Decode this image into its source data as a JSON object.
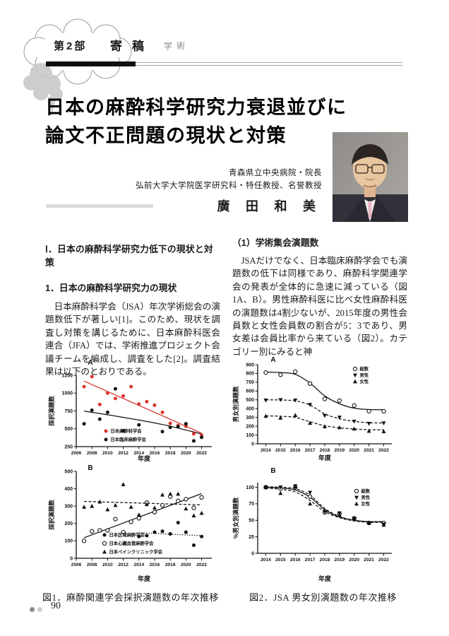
{
  "header": {
    "part_label": "第2部",
    "section_title": "寄稿",
    "section_tag": "学術"
  },
  "title": {
    "line1": "日本の麻酔科学研究力衰退並びに",
    "line2": "論文不正問題の現状と対策"
  },
  "author": {
    "affiliation1": "青森県立中央病院・院長",
    "affiliation2": "弘前大学大学院医学研究科・特任教授、名誉教授",
    "name": "廣 田 和 美"
  },
  "columns": {
    "left": {
      "heading": "Ⅰ．日本の麻酔科学研究力低下の現状と対策",
      "subheading": "1．日本の麻酔科学研究力の現状",
      "body": "　日本麻酔科学会（JSA）年次学術総会の演題数低下が著しい[1]。このため、現状を調査し対策を講じるために、日本麻酔科医会連合（JFA）では、学術推進プロジェクト会議チームを編成し、調査をした[2]。調査結果は以下のとおりである。"
    },
    "right": {
      "heading": "（1）学術集会演題数",
      "body": "　JSAだけでなく、日本臨床麻酔学会でも演題数の低下は同様であり、麻酔科学関連学会の発表が全体的に急速に減っている（図1A、B）。男性麻酔科医に比べ女性麻酔科医の演題数は4割少ないが、2015年度の男性会員数と女性会員数の割合が5：3であり、男女差は会員比率から来ている（図2）。カテゴリー別にみると神"
    }
  },
  "figures": {
    "fig1_caption": "図1．麻酔関連学会採択演題数の年次推移",
    "fig2_caption": "図2．JSA 男女別演題数の年次推移"
  },
  "footer": {
    "page_number": "90"
  },
  "chart_data": [
    {
      "id": "fig1A",
      "type": "scatter",
      "panel": "A",
      "xlabel": "年度",
      "ylabel": "採択演題数",
      "xlim": [
        2006,
        2023.3
      ],
      "ylim": [
        250,
        1250
      ],
      "xticks": [
        2006,
        2008,
        2010,
        2012,
        2014,
        2016,
        2018,
        2020,
        2022
      ],
      "yticks": [
        250,
        500,
        750,
        1000,
        1250
      ],
      "legend_position": "bottom-left",
      "series": [
        {
          "name": "日本麻酔科学会",
          "marker": "circle",
          "color": "#d9352c",
          "points": [
            [
              2007,
              1090
            ],
            [
              2008,
              1230
            ],
            [
              2009,
              840
            ],
            [
              2010,
              1000
            ],
            [
              2011,
              925
            ],
            [
              2012,
              960
            ],
            [
              2013,
              1090
            ],
            [
              2014,
              845
            ],
            [
              2015,
              880
            ],
            [
              2016,
              830
            ],
            [
              2017,
              730
            ],
            [
              2018,
              575
            ],
            [
              2019,
              545
            ],
            [
              2020,
              535
            ],
            [
              2021,
              430
            ],
            [
              2022,
              410
            ]
          ]
        },
        {
          "name": "日本臨床麻酔学会",
          "marker": "circle",
          "color": "#111111",
          "points": [
            [
              2007,
              570
            ],
            [
              2008,
              760
            ],
            [
              2009,
              635
            ],
            [
              2010,
              730
            ],
            [
              2011,
              1060
            ],
            [
              2012,
              470
            ],
            [
              2014,
              555
            ],
            [
              2017,
              460
            ],
            [
              2018,
              520
            ],
            [
              2019,
              530
            ],
            [
              2020,
              570
            ],
            [
              2021,
              330
            ],
            [
              2022,
              380
            ]
          ]
        }
      ],
      "trends": [
        {
          "color": "#d9352c",
          "dash": "solid",
          "points": [
            [
              2007,
              1168
            ],
            [
              2022,
              438
            ]
          ]
        },
        {
          "color": "#111111",
          "dash": "solid",
          "smooth": true,
          "points": [
            [
              2007,
              748
            ],
            [
              2012,
              660
            ],
            [
              2017,
              560
            ],
            [
              2022,
              428
            ]
          ]
        }
      ]
    },
    {
      "id": "fig1B",
      "type": "scatter",
      "panel": "B",
      "xlabel": "年度",
      "ylabel": "採択演題数",
      "xlim": [
        2006,
        2023.3
      ],
      "ylim": [
        0,
        500
      ],
      "xticks": [
        2006,
        2008,
        2010,
        2012,
        2014,
        2016,
        2018,
        2020,
        2022
      ],
      "yticks": [
        0,
        100,
        200,
        300,
        400,
        500
      ],
      "legend_position": "bottom-left",
      "series": [
        {
          "name": "日本区域麻酔学会",
          "marker": "circle",
          "color": "#111111",
          "points": [
            [
              2014,
              125
            ],
            [
              2015,
              130
            ],
            [
              2016,
              150
            ],
            [
              2017,
              155
            ],
            [
              2018,
              140
            ],
            [
              2019,
              205
            ],
            [
              2020,
              150
            ],
            [
              2021,
              75
            ],
            [
              2022,
              125
            ]
          ]
        },
        {
          "name": "日本心臓血管麻酔学会",
          "marker": "circle-open",
          "color": "#111111",
          "points": [
            [
              2007,
              100
            ],
            [
              2008,
              155
            ],
            [
              2009,
              160
            ],
            [
              2010,
              160
            ],
            [
              2011,
              225
            ],
            [
              2012,
              150
            ],
            [
              2013,
              210
            ],
            [
              2014,
              230
            ],
            [
              2015,
              320
            ],
            [
              2016,
              265
            ],
            [
              2017,
              305
            ],
            [
              2018,
              355
            ],
            [
              2019,
              330
            ],
            [
              2020,
              340
            ],
            [
              2021,
              290
            ],
            [
              2022,
              350
            ]
          ]
        },
        {
          "name": "日本ペインクリニック学会",
          "marker": "tri-up",
          "color": "#111111",
          "points": [
            [
              2007,
              295
            ],
            [
              2008,
              300
            ],
            [
              2009,
              325
            ],
            [
              2010,
              280
            ],
            [
              2011,
              305
            ],
            [
              2012,
              425
            ],
            [
              2013,
              295
            ],
            [
              2014,
              250
            ],
            [
              2015,
              310
            ],
            [
              2016,
              290
            ],
            [
              2017,
              365
            ],
            [
              2018,
              370
            ],
            [
              2019,
              370
            ],
            [
              2020,
              285
            ],
            [
              2021,
              245
            ],
            [
              2022,
              260
            ]
          ]
        }
      ],
      "trends": [
        {
          "color": "#111111",
          "dash": "solid",
          "points": [
            [
              2007,
              118
            ],
            [
              2022,
              372
            ]
          ]
        },
        {
          "color": "#111111",
          "dash": "dashed",
          "points": [
            [
              2007,
              327
            ],
            [
              2022,
              307
            ]
          ]
        },
        {
          "color": "#111111",
          "dash": "dotted",
          "points": [
            [
              2014,
              147
            ],
            [
              2022,
              130
            ]
          ]
        }
      ]
    },
    {
      "id": "fig2A",
      "type": "scatter",
      "panel": "A",
      "xlabel": "年度",
      "ylabel": "男女別演題数",
      "xlim": [
        2013.45,
        2022.55
      ],
      "ylim": [
        0,
        900
      ],
      "xticks": [
        2014,
        2015,
        2016,
        2017,
        2018,
        2019,
        2020,
        2021,
        2022
      ],
      "yticks": [
        0,
        100,
        200,
        300,
        400,
        500,
        600,
        700,
        800,
        900
      ],
      "legend_position": "top-right",
      "series": [
        {
          "name": "総数",
          "marker": "circle-open",
          "color": "#111111",
          "points": [
            [
              2014,
              810
            ],
            [
              2015,
              785
            ],
            [
              2016,
              820
            ],
            [
              2017,
              685
            ],
            [
              2018,
              510
            ],
            [
              2019,
              490
            ],
            [
              2020,
              435
            ],
            [
              2021,
              370
            ],
            [
              2022,
              370
            ]
          ]
        },
        {
          "name": "男性",
          "marker": "tri-down",
          "color": "#111111",
          "points": [
            [
              2014,
              495
            ],
            [
              2015,
              500
            ],
            [
              2016,
              495
            ],
            [
              2017,
              445
            ],
            [
              2018,
              320
            ],
            [
              2019,
              300
            ],
            [
              2020,
              255
            ],
            [
              2021,
              230
            ],
            [
              2022,
              235
            ]
          ]
        },
        {
          "name": "女性",
          "marker": "tri-up",
          "color": "#111111",
          "points": [
            [
              2014,
              315
            ],
            [
              2015,
              295
            ],
            [
              2016,
              325
            ],
            [
              2017,
              235
            ],
            [
              2018,
              195
            ],
            [
              2019,
              185
            ],
            [
              2020,
              170
            ],
            [
              2021,
              145
            ],
            [
              2022,
              140
            ]
          ]
        }
      ],
      "trends": [
        {
          "color": "#111111",
          "dash": "solid",
          "smooth": true,
          "points": [
            [
              2014,
              815
            ],
            [
              2015,
              810
            ],
            [
              2016,
              790
            ],
            [
              2017,
              690
            ],
            [
              2018,
              545
            ],
            [
              2019,
              455
            ],
            [
              2020,
              405
            ],
            [
              2021,
              390
            ],
            [
              2022,
              388
            ]
          ]
        },
        {
          "color": "#111111",
          "dash": "dashed",
          "smooth": true,
          "points": [
            [
              2014,
              500
            ],
            [
              2015,
              498
            ],
            [
              2016,
              488
            ],
            [
              2017,
              440
            ],
            [
              2018,
              340
            ],
            [
              2019,
              285
            ],
            [
              2020,
              255
            ],
            [
              2021,
              240
            ],
            [
              2022,
              237
            ]
          ]
        },
        {
          "color": "#111111",
          "dash": "dashed",
          "smooth": true,
          "points": [
            [
              2014,
              317
            ],
            [
              2015,
              313
            ],
            [
              2016,
              300
            ],
            [
              2017,
              250
            ],
            [
              2018,
              205
            ],
            [
              2019,
              182
            ],
            [
              2020,
              168
            ],
            [
              2021,
              160
            ],
            [
              2022,
              158
            ]
          ]
        }
      ]
    },
    {
      "id": "fig2B",
      "type": "scatter",
      "panel": "B",
      "xlabel": "年度",
      "ylabel": "%男女別演題数",
      "xlim": [
        2013.45,
        2022.55
      ],
      "ylim": [
        0,
        107
      ],
      "xticks": [
        2014,
        2015,
        2016,
        2017,
        2018,
        2019,
        2020,
        2021,
        2022
      ],
      "yticks": [
        0,
        25,
        50,
        75,
        100
      ],
      "legend_position": "top-right",
      "series": [
        {
          "name": "総数",
          "marker": "circle-open",
          "color": "#111111",
          "points": [
            [
              2014,
              100
            ],
            [
              2015,
              98
            ],
            [
              2016,
              100
            ],
            [
              2017,
              86
            ],
            [
              2018,
              62
            ],
            [
              2019,
              60
            ],
            [
              2020,
              53
            ],
            [
              2021,
              46
            ],
            [
              2022,
              46
            ]
          ]
        },
        {
          "name": "男性",
          "marker": "tri-down",
          "color": "#111111",
          "points": [
            [
              2014,
              100
            ],
            [
              2015,
              100
            ],
            [
              2016,
              102
            ],
            [
              2017,
              92
            ],
            [
              2018,
              63
            ],
            [
              2019,
              61
            ],
            [
              2020,
              53
            ],
            [
              2021,
              46
            ],
            [
              2022,
              44
            ]
          ]
        },
        {
          "name": "女性",
          "marker": "tri-up",
          "color": "#111111",
          "points": [
            [
              2014,
              100
            ],
            [
              2015,
              91
            ],
            [
              2016,
              101
            ],
            [
              2017,
              75
            ],
            [
              2018,
              65
            ],
            [
              2019,
              58
            ],
            [
              2020,
              53
            ],
            [
              2021,
              46
            ],
            [
              2022,
              43
            ]
          ]
        }
      ],
      "trends": [
        {
          "color": "#111111",
          "dash": "solid",
          "smooth": true,
          "points": [
            [
              2014,
              100
            ],
            [
              2015,
              99
            ],
            [
              2016,
              96
            ],
            [
              2017,
              85
            ],
            [
              2018,
              66
            ],
            [
              2019,
              55
            ],
            [
              2020,
              50
            ],
            [
              2021,
              48
            ],
            [
              2022,
              48
            ]
          ]
        },
        {
          "color": "#111111",
          "dash": "dashed",
          "smooth": true,
          "points": [
            [
              2014,
              101
            ],
            [
              2015,
              100
            ],
            [
              2016,
              98
            ],
            [
              2017,
              88
            ],
            [
              2018,
              68
            ],
            [
              2019,
              56
            ],
            [
              2020,
              50
            ],
            [
              2021,
              48
            ],
            [
              2022,
              48
            ]
          ]
        },
        {
          "color": "#111111",
          "dash": "dashed",
          "smooth": true,
          "points": [
            [
              2014,
              99
            ],
            [
              2015,
              97
            ],
            [
              2016,
              93
            ],
            [
              2017,
              80
            ],
            [
              2018,
              63
            ],
            [
              2019,
              54
            ],
            [
              2020,
              49
            ],
            [
              2021,
              47
            ],
            [
              2022,
              47
            ]
          ]
        }
      ]
    }
  ]
}
